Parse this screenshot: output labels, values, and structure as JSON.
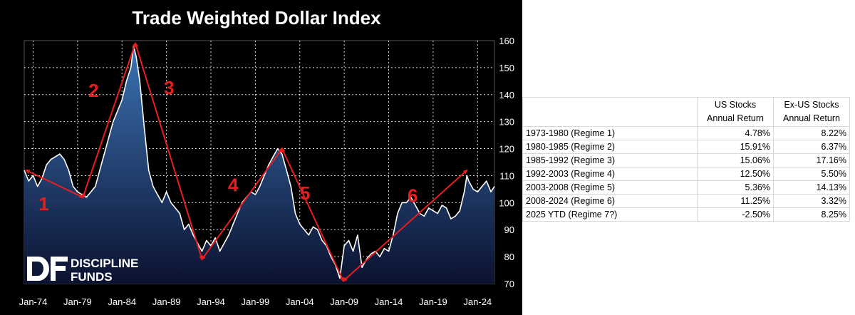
{
  "chart_data": {
    "type": "line",
    "title": "Trade Weighted Dollar Index",
    "xlabel": "",
    "ylabel": "",
    "x_range": [
      1973.0,
      2025.9
    ],
    "ylim": [
      70,
      160
    ],
    "y_ticks": [
      "70",
      "80",
      "90",
      "100",
      "110",
      "120",
      "130",
      "140",
      "150",
      "160"
    ],
    "x_ticks": [
      {
        "label": "Jan-74",
        "x": 1974
      },
      {
        "label": "Jan-79",
        "x": 1979
      },
      {
        "label": "Jan-84",
        "x": 1984
      },
      {
        "label": "Jan-89",
        "x": 1989
      },
      {
        "label": "Jan-94",
        "x": 1994
      },
      {
        "label": "Jan-99",
        "x": 1999
      },
      {
        "label": "Jan-04",
        "x": 2004
      },
      {
        "label": "Jan-09",
        "x": 2009
      },
      {
        "label": "Jan-14",
        "x": 2014
      },
      {
        "label": "Jan-19",
        "x": 2019
      },
      {
        "label": "Jan-24",
        "x": 2024
      }
    ],
    "grid": true,
    "series": [
      {
        "name": "Trade Weighted Dollar Index",
        "x": [
          1973.0,
          1973.5,
          1974.0,
          1974.5,
          1975.0,
          1975.5,
          1976.0,
          1976.5,
          1977.0,
          1977.5,
          1978.0,
          1978.5,
          1979.0,
          1979.5,
          1980.0,
          1980.5,
          1981.0,
          1981.5,
          1982.0,
          1982.5,
          1983.0,
          1983.5,
          1984.0,
          1984.5,
          1985.0,
          1985.3,
          1985.6,
          1986.0,
          1986.5,
          1987.0,
          1987.5,
          1988.0,
          1988.5,
          1989.0,
          1989.5,
          1990.0,
          1990.5,
          1991.0,
          1991.5,
          1992.0,
          1992.5,
          1993.0,
          1993.5,
          1994.0,
          1994.5,
          1995.0,
          1995.5,
          1996.0,
          1996.5,
          1997.0,
          1997.5,
          1998.0,
          1998.5,
          1999.0,
          1999.5,
          2000.0,
          2000.5,
          2001.0,
          2001.5,
          2002.0,
          2002.5,
          2003.0,
          2003.5,
          2004.0,
          2004.5,
          2005.0,
          2005.5,
          2006.0,
          2006.5,
          2007.0,
          2007.5,
          2008.0,
          2008.5,
          2009.0,
          2009.5,
          2010.0,
          2010.5,
          2011.0,
          2011.5,
          2012.0,
          2012.5,
          2013.0,
          2013.5,
          2014.0,
          2014.5,
          2015.0,
          2015.5,
          2016.0,
          2016.5,
          2017.0,
          2017.5,
          2018.0,
          2018.5,
          2019.0,
          2019.5,
          2020.0,
          2020.5,
          2021.0,
          2021.5,
          2022.0,
          2022.5,
          2022.8,
          2023.0,
          2023.5,
          2024.0,
          2024.5,
          2025.0,
          2025.5,
          2025.9
        ],
        "values": [
          112,
          108,
          110,
          106,
          109,
          114,
          116,
          117,
          118,
          116,
          112,
          106,
          104,
          103,
          102,
          104,
          106,
          112,
          118,
          124,
          130,
          134,
          138,
          145,
          150,
          158,
          154,
          145,
          128,
          112,
          106,
          103,
          100,
          104,
          100,
          98,
          96,
          90,
          92,
          88,
          85,
          82,
          86,
          84,
          87,
          82,
          85,
          88,
          92,
          96,
          100,
          102,
          104,
          103,
          106,
          110,
          114,
          117,
          120,
          118,
          112,
          106,
          96,
          92,
          90,
          88,
          91,
          90,
          86,
          84,
          80,
          77,
          72,
          84,
          86,
          82,
          88,
          76,
          79,
          81,
          82,
          80,
          83,
          82,
          88,
          96,
          100,
          100,
          102,
          99,
          96,
          95,
          98,
          97,
          96,
          99,
          98,
          94,
          95,
          97,
          104,
          110,
          108,
          105,
          104,
          106,
          108,
          104,
          106
        ]
      }
    ],
    "annotations": [
      {
        "label": "1",
        "x": 1975.2,
        "y": 99
      },
      {
        "label": "2",
        "x": 1980.8,
        "y": 141
      },
      {
        "label": "3",
        "x": 1989.3,
        "y": 142
      },
      {
        "label": "4",
        "x": 1996.5,
        "y": 106
      },
      {
        "label": "5",
        "x": 2004.6,
        "y": 103
      },
      {
        "label": "6",
        "x": 2016.7,
        "y": 102
      }
    ],
    "arrows": [
      {
        "from": [
          1973.2,
          112
        ],
        "to": [
          1979.6,
          102
        ]
      },
      {
        "from": [
          1979.6,
          102
        ],
        "to": [
          1985.5,
          159
        ]
      },
      {
        "from": [
          1985.5,
          159
        ],
        "to": [
          1993.0,
          79
        ]
      },
      {
        "from": [
          1993.0,
          79
        ],
        "to": [
          2002.0,
          120
        ]
      },
      {
        "from": [
          2002.0,
          120
        ],
        "to": [
          2008.9,
          71
        ]
      },
      {
        "from": [
          2008.9,
          71
        ],
        "to": [
          2022.8,
          112
        ]
      }
    ]
  },
  "logo": {
    "line1": "DISCIPLINE",
    "line2": "FUNDS"
  },
  "colors": {
    "line": "#ffffff",
    "fill_top": "#3c73b4",
    "fill_bottom": "#0b1230",
    "arrow": "#e81e1e",
    "panel_bg": "#000000"
  },
  "table": {
    "headers": [
      {
        "line1": "",
        "line2": ""
      },
      {
        "line1": "US Stocks",
        "line2": "Annual  Return"
      },
      {
        "line1": "Ex-US Stocks",
        "line2": "Annual  Return"
      }
    ],
    "rows": [
      {
        "label": "1973-1980 (Regime 1)",
        "us": "4.78%",
        "exus": "8.22%"
      },
      {
        "label": "1980-1985 (Regime 2)",
        "us": "15.91%",
        "exus": "6.37%"
      },
      {
        "label": "1985-1992 (Regime 3)",
        "us": "15.06%",
        "exus": "17.16%"
      },
      {
        "label": "1992-2003 (Regime 4)",
        "us": "12.50%",
        "exus": "5.50%"
      },
      {
        "label": "2003-2008 (Regime 5)",
        "us": "5.36%",
        "exus": "14.13%"
      },
      {
        "label": "2008-2024 (Regime 6)",
        "us": "11.25%",
        "exus": "3.32%"
      },
      {
        "label": "2025 YTD (Regime 7?)",
        "us": "-2.50%",
        "exus": "8.25%"
      }
    ]
  }
}
